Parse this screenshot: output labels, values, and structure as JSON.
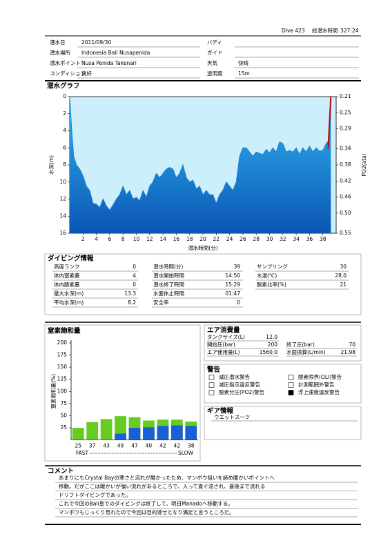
{
  "header": {
    "dive": "Dive 423",
    "total_time_label": "総潜水時間",
    "total_time": "327:24"
  },
  "fields": [
    {
      "label": "潜水日",
      "value": "2011/09/30"
    },
    {
      "label": "バディ"
    },
    {
      "label": "潜水場所",
      "value": "Indonesia Bali  Nusapenida"
    },
    {
      "label": "ガイド"
    },
    {
      "label": "潜水ポイント",
      "value": "Nusa Penida Takenari"
    },
    {
      "label": "天気",
      "value": "快晴"
    },
    {
      "label": "コンディション",
      "value": "良好"
    },
    {
      "label": "透明度",
      "value": "15m"
    }
  ],
  "chart_data": [
    {
      "type": "area",
      "title": "潜水グラフ",
      "xlabel": "潜水時間(分)",
      "ylabel": "水深(m)",
      "y2label": "PO2(ata)",
      "xlim": [
        0,
        40
      ],
      "xticks": [
        2,
        4,
        6,
        8,
        10,
        12,
        14,
        16,
        18,
        20,
        22,
        24,
        26,
        28,
        30,
        32,
        34,
        36,
        38
      ],
      "ylim": [
        0,
        16
      ],
      "yticks": [
        0,
        2,
        4,
        6,
        8,
        10,
        12,
        14,
        16
      ],
      "inverted_axes": true,
      "y2lim": [
        0.21,
        0.55
      ],
      "y2ticks": [
        0.21,
        0.25,
        0.29,
        0.34,
        0.38,
        0.42,
        0.46,
        {
          "value": 0.5,
          "label": "0.50"
        },
        0.55
      ],
      "series": [
        {
          "color": "#1a7fd0",
          "x": [
            0,
            0.3,
            0.6,
            1,
            1.5,
            2,
            2.5,
            3,
            3.5,
            4,
            4.5,
            5,
            5.5,
            6,
            6.5,
            7,
            7.5,
            8,
            8.5,
            9,
            9.5,
            10,
            10.5,
            11,
            11.5,
            12,
            12.5,
            13,
            13.5,
            14,
            14.5,
            15,
            15.5,
            16,
            16.5,
            17,
            17.5,
            18,
            18.5,
            19,
            19.5,
            20,
            20.5,
            21,
            21.5,
            22,
            22.5,
            23,
            23.5,
            24,
            24.5,
            25,
            25.5,
            26,
            26.5,
            27,
            27.5,
            28,
            29,
            29.5,
            30,
            30.5,
            31,
            31.5,
            32,
            32.5,
            33,
            33.5,
            34,
            34.5,
            35,
            35.5,
            36,
            36.5,
            37,
            37.5,
            38,
            38.5,
            39,
            39.2
          ],
          "values": [
            0,
            4,
            7,
            8,
            8.5,
            9.3,
            10.5,
            11,
            12.5,
            12.6,
            13,
            12,
            12.8,
            13.3,
            12.7,
            12,
            11.5,
            10.5,
            11.5,
            11,
            12,
            11.8,
            12.2,
            11,
            11.8,
            10.5,
            10,
            9,
            9.5,
            9,
            8.5,
            8.3,
            8.5,
            9.5,
            9,
            8,
            9.5,
            10,
            9.8,
            10.8,
            10.5,
            11.5,
            11,
            11.5,
            11.5,
            12.5,
            11.5,
            11,
            10,
            10.5,
            11,
            10,
            7,
            6,
            6,
            6.5,
            7,
            6.5,
            6.8,
            6.2,
            6.6,
            6,
            6.5,
            5.3,
            5.5,
            6.5,
            6.3,
            6.5,
            6,
            6.8,
            6,
            6.5,
            5.8,
            6.5,
            6,
            6.4,
            6.3,
            5.5,
            5,
            0
          ]
        },
        {
          "color": "#c00000",
          "axis": "y2",
          "x": [
            38.8,
            39.2
          ],
          "values": [
            0.34,
            0.21
          ]
        }
      ]
    },
    {
      "type": "bar",
      "title": "窒素飽和量",
      "ylabel": "窒素飽和量(%)",
      "categories": [
        "25",
        "37",
        "43",
        "49",
        "47",
        "40",
        "42",
        "42",
        "38"
      ],
      "x_left_label": "FAST",
      "x_right_label": "SLOW",
      "ylim": [
        0,
        200
      ],
      "yticks": [
        25,
        50,
        75,
        100,
        125,
        150,
        175,
        200
      ],
      "series": [
        {
          "color": "#66cc22",
          "values": [
            25,
            37,
            43,
            49,
            47,
            40,
            42,
            42,
            38
          ]
        },
        {
          "color": "#1a5fd6",
          "values": [
            0,
            0,
            0,
            13,
            25,
            26,
            29,
            30,
            29
          ]
        }
      ]
    }
  ],
  "dive_info": {
    "title": "ダイビング情報",
    "columns": [
      [
        {
          "label": "高度ランク",
          "value": "0"
        },
        {
          "label": "体内窒素量",
          "value": "4"
        },
        {
          "label": "体内酸素量",
          "value": "0"
        },
        {
          "label": "最大水深(m)",
          "value": "13.3"
        },
        {
          "label": "平均水深(m)",
          "value": "8.2"
        }
      ],
      [
        {
          "label": "潜水時間(分)",
          "value": "39"
        },
        {
          "label": "潜水開始時間",
          "value": "14:50"
        },
        {
          "label": "潜水終了時間",
          "value": "15:29"
        },
        {
          "label": "水面休止時間",
          "value": "01:47"
        },
        {
          "label": "安全率",
          "value": "0"
        }
      ],
      [
        {
          "label": "サンプリング",
          "value": "30"
        },
        {
          "label": "水温(℃)",
          "value": "28.0"
        },
        {
          "label": "酸素比率(%)",
          "value": "21"
        }
      ]
    ]
  },
  "air": {
    "title": "エア消費量",
    "items": [
      {
        "label": "タンクサイズ(L)",
        "value": "12.0"
      },
      {
        "label": "開始圧(bar)",
        "value": "200"
      },
      {
        "label": "終了圧(bar)",
        "value": "70"
      },
      {
        "label": "エア使用量(L)",
        "value": "1560.0"
      },
      {
        "label": "水面換算(L/min)",
        "value": "21.98"
      }
    ]
  },
  "warnings": {
    "title": "警告",
    "items": [
      {
        "label": "減圧潜水警告",
        "checked": false
      },
      {
        "label": "減圧指示違反警告",
        "checked": false
      },
      {
        "label": "酸素分圧(PO2)警告",
        "checked": false
      },
      {
        "label": "酸素限界(OLI)警告",
        "checked": false
      },
      {
        "label": "計測範囲外警告",
        "checked": false
      },
      {
        "label": "浮上速度違反警告",
        "checked": true
      }
    ]
  },
  "gear": {
    "title": "ギア情報",
    "items": [
      "ウエットスーツ"
    ]
  },
  "comment": {
    "title": "コメント",
    "lines": [
      "あまりにもCrystal  Bayの寒さと流れが酷かったため、マンボウ狙いを諦め暖かいポイントへ",
      "移動。だがここは暖かいが強い流れがあるところで、入って直ぐ流され、最後まで流れる",
      "ドリフトダイビングであった。",
      "これで今回のBali島でのダイビングは終了して、明日Manadoへ移動する。",
      "マンボウもじっくり見れたので今回は目的達せとなり満足と言うところだ。"
    ]
  }
}
